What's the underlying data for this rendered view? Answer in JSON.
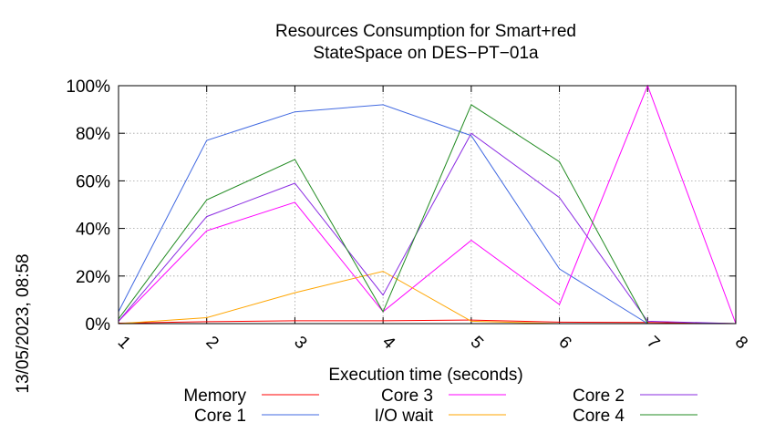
{
  "timestamp": "13/05/2023, 08:58",
  "chart_data": {
    "type": "line",
    "title_lines": [
      "Resources Consumption for Smart+red",
      "StateSpace on DES−PT−01a"
    ],
    "xlabel": "Execution time (seconds)",
    "ylabel": "",
    "x": [
      1,
      2,
      3,
      4,
      5,
      6,
      7,
      8
    ],
    "xlim": [
      1,
      8
    ],
    "ylim": [
      0,
      100
    ],
    "x_ticks": [
      "1",
      "2",
      "3",
      "4",
      "5",
      "6",
      "7",
      "8"
    ],
    "y_ticks": [
      "0%",
      "20%",
      "40%",
      "60%",
      "80%",
      "100%"
    ],
    "grid": true,
    "legend_position": "bottom",
    "series": [
      {
        "name": "Memory",
        "color": "#ff0000",
        "values": [
          0.2,
          0.8,
          1.2,
          1.2,
          1.5,
          0.6,
          0.5,
          0
        ]
      },
      {
        "name": "Core 1",
        "color": "#4169e1",
        "values": [
          5,
          77,
          89,
          92,
          79,
          23,
          0,
          0
        ]
      },
      {
        "name": "Core 3",
        "color": "#ff00ff",
        "values": [
          1,
          39,
          51,
          5,
          35,
          8,
          100,
          0
        ]
      },
      {
        "name": "I/O wait",
        "color": "#ffa500",
        "values": [
          0,
          2.5,
          13,
          22,
          1,
          0,
          0,
          0
        ]
      },
      {
        "name": "Core 2",
        "color": "#8a2be2",
        "values": [
          1,
          45,
          59,
          12,
          80,
          53,
          1,
          0
        ]
      },
      {
        "name": "Core 4",
        "color": "#228b22",
        "values": [
          2,
          52,
          69,
          5,
          92,
          68,
          0,
          0
        ]
      }
    ]
  }
}
